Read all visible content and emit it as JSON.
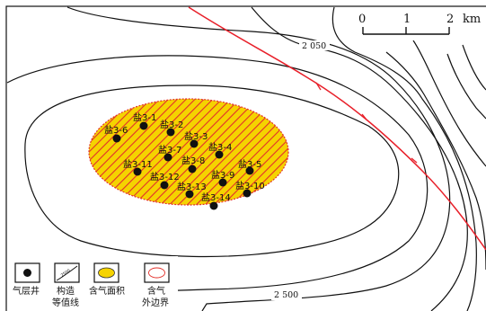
{
  "scale": {
    "ticks": [
      "0",
      "1",
      "2"
    ],
    "unit": "km"
  },
  "contour_labels": [
    "2 050",
    "2 500"
  ],
  "wells": [
    {
      "name": "盐3-1"
    },
    {
      "name": "盐3-2"
    },
    {
      "name": "盐3-3"
    },
    {
      "name": "盐3-4"
    },
    {
      "name": "盐3-5"
    },
    {
      "name": "盐3-6"
    },
    {
      "name": "盐3-7"
    },
    {
      "name": "盐3-8"
    },
    {
      "name": "盐3-9"
    },
    {
      "name": "盐3-10"
    },
    {
      "name": "盐3-11"
    },
    {
      "name": "盐3-12"
    },
    {
      "name": "盐3-13"
    },
    {
      "name": "盐3-14"
    }
  ],
  "legend": {
    "gas_well": "气层井",
    "contour_line1": "构造",
    "contour_line2": "等值线",
    "contour_sample": "2500",
    "gas_area": "含气面积",
    "gas_boundary1": "含气",
    "gas_boundary2": "外边界"
  },
  "colors": {
    "gas_fill": "#f5d300",
    "hatch": "#e2302a",
    "fault": "#e8202a",
    "contour": "#111111"
  }
}
